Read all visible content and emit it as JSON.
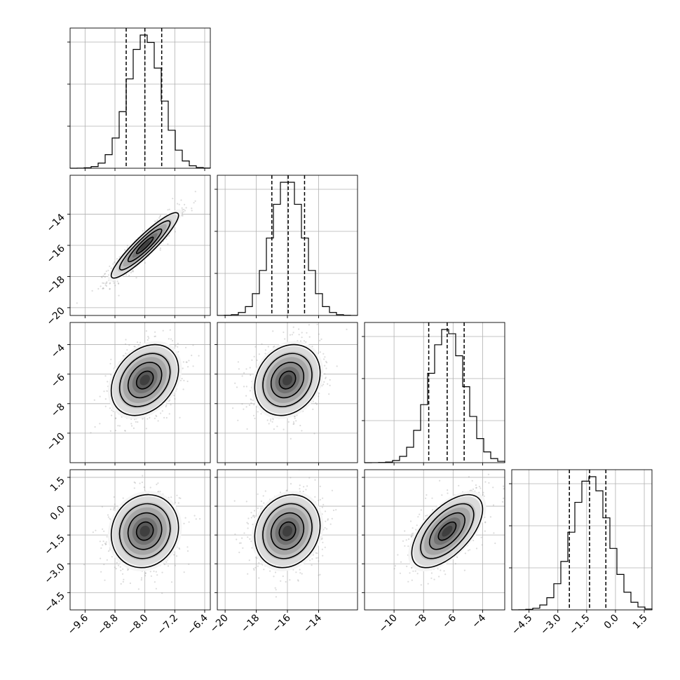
{
  "chart_data": {
    "type": "corner",
    "parameters": [
      {
        "index": 0,
        "range": [
          -10.0,
          -6.25
        ],
        "ticks": [
          -9.6,
          -8.8,
          -8.0,
          -7.2,
          -6.4
        ],
        "tick_labels": [
          "−9.6",
          "−8.8",
          "−8.0",
          "−7.2",
          "−6.4"
        ],
        "quantiles": [
          -8.5,
          -8.0,
          -7.55
        ],
        "mean": -8.0,
        "std": 0.45
      },
      {
        "index": 1,
        "range": [
          -20.5,
          -11.5
        ],
        "ticks": [
          -20,
          -18,
          -16,
          -14
        ],
        "tick_labels": [
          "−20",
          "−18",
          "−16",
          "−14"
        ],
        "quantiles": [
          -17.0,
          -15.95,
          -14.9
        ],
        "mean": -16.0,
        "std": 1.05
      },
      {
        "index": 2,
        "range": [
          -12.0,
          -2.5
        ],
        "ticks": [
          -10,
          -8,
          -6,
          -4
        ],
        "tick_labels": [
          "−10",
          "−8",
          "−6",
          "−4"
        ],
        "quantiles": [
          -7.65,
          -6.4,
          -5.25
        ],
        "mean": -6.4,
        "std": 1.2
      },
      {
        "index": 3,
        "range": [
          -5.4,
          1.9
        ],
        "ticks": [
          -4.5,
          -3.0,
          -1.5,
          0.0,
          1.5
        ],
        "tick_labels": [
          "−4.5",
          "−3.0",
          "−1.5",
          "0.0",
          "1.5"
        ],
        "quantiles": [
          -2.4,
          -1.35,
          -0.5
        ],
        "mean": -1.3,
        "std": 0.95
      }
    ],
    "correlations": [
      {
        "row": 1,
        "col": 0,
        "rho": 0.92
      },
      {
        "row": 2,
        "col": 0,
        "rho": 0.3
      },
      {
        "row": 2,
        "col": 1,
        "rho": 0.2
      },
      {
        "row": 3,
        "col": 0,
        "rho": 0.1
      },
      {
        "row": 3,
        "col": 1,
        "rho": 0.15
      },
      {
        "row": 3,
        "col": 2,
        "rho": 0.6
      }
    ],
    "contour_levels_sigma": [
      0.5,
      1.0,
      1.5,
      2.0
    ],
    "grid": true
  }
}
